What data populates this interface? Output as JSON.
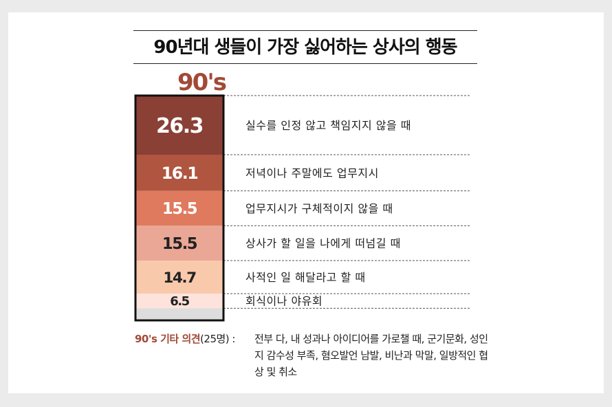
{
  "chart_data": {
    "type": "bar",
    "title": "90년대 생들이 가장 싫어하는 상사의 행동",
    "group_label": "90's",
    "categories": [
      "실수를 인정 않고 책임지지 않을 때",
      "저녁이나 주말에도 업무지시",
      "업무지시가 구체적이지 않을 때",
      "상사가 할 일을 나에게 떠넘길 때",
      "사적인 일 해달라고 할 때",
      "회식이나 야유회"
    ],
    "values": [
      26.3,
      16.1,
      15.5,
      15.5,
      14.7,
      6.5
    ],
    "value_labels": [
      "26.3",
      "16.1",
      "15.5",
      "15.5",
      "14.7",
      "6.5"
    ],
    "remainder": 5.4,
    "colors": [
      "#8a4035",
      "#b0553f",
      "#df7a5e",
      "#eba796",
      "#f9c9ac",
      "#fde3dc"
    ],
    "remainder_color": "#dddddd",
    "value_text_colors": [
      "#ffffff",
      "#ffffff",
      "#ffffff",
      "#222222",
      "#222222",
      "#222222"
    ],
    "stacked": true,
    "orientation": "vertical"
  },
  "note": {
    "label": "90's 기타 의견",
    "count": "(25명) :",
    "text": "전부 다, 내 성과나 아이디어를 가로챌 때, 군기문화, 성인지 감수성 부족, 혐오발언 남발, 비난과 막말, 일방적인 협상 및 취소"
  }
}
